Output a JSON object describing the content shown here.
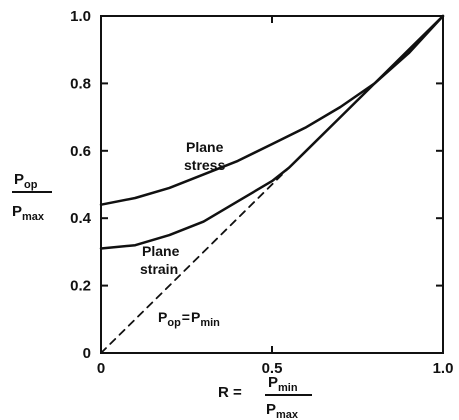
{
  "chart_data": {
    "type": "line",
    "xlim": [
      0,
      1.0
    ],
    "ylim": [
      0,
      1.0
    ],
    "x_ticks": [
      0,
      0.5,
      1.0
    ],
    "x_tick_labels": [
      "0",
      "0.5",
      "1.0"
    ],
    "y_ticks": [
      0,
      0.2,
      0.4,
      0.6,
      0.8,
      1.0
    ],
    "y_tick_labels": [
      "0",
      "0.2",
      "0.4",
      "0.6",
      "0.8",
      "1.0"
    ],
    "xlabel": {
      "prefix": "R =",
      "numerator": "P",
      "numerator_sub": "min",
      "denominator": "P",
      "denominator_sub": "max"
    },
    "ylabel": {
      "numerator": "P",
      "numerator_sub": "op",
      "denominator": "P",
      "denominator_sub": "max"
    },
    "grid": false,
    "series": [
      {
        "name": "Plane stress",
        "style": "solid",
        "x": [
          0,
          0.1,
          0.2,
          0.3,
          0.4,
          0.5,
          0.6,
          0.7,
          0.8,
          0.9,
          1.0
        ],
        "y": [
          0.44,
          0.46,
          0.49,
          0.53,
          0.57,
          0.62,
          0.67,
          0.73,
          0.8,
          0.89,
          1.0
        ]
      },
      {
        "name": "Plane strain",
        "style": "solid",
        "x": [
          0,
          0.1,
          0.2,
          0.3,
          0.4,
          0.5,
          0.55,
          0.6,
          0.7,
          0.8,
          0.9,
          1.0
        ],
        "y": [
          0.31,
          0.32,
          0.35,
          0.39,
          0.45,
          0.51,
          0.55,
          0.6,
          0.7,
          0.8,
          0.9,
          1.0
        ]
      },
      {
        "name": "Pop = Pmin",
        "style": "dashed",
        "x": [
          0,
          0.55
        ],
        "y": [
          0,
          0.55
        ]
      }
    ],
    "annotations": {
      "plane_stress_line1": "Plane",
      "plane_stress_line2": "stress",
      "plane_strain_line1": "Plane",
      "plane_strain_line2": "strain",
      "equality_p1": "P",
      "equality_sub1": "op",
      "equality_eq": "=",
      "equality_p2": "P",
      "equality_sub2": "min"
    },
    "colors": {
      "line": "#111111",
      "background": "#ffffff"
    }
  }
}
